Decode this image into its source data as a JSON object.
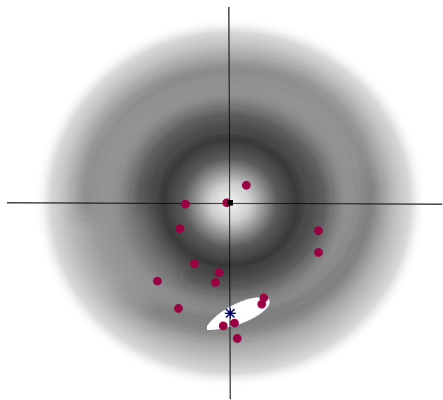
{
  "chart_data": {
    "type": "scatter",
    "x": [
      352,
      265,
      324,
      257,
      455,
      455,
      278,
      313,
      225,
      308,
      377,
      374,
      255,
      335,
      319,
      339
    ],
    "y": [
      265,
      292,
      290,
      327,
      330,
      361,
      377,
      390,
      402,
      404,
      426,
      435,
      441,
      462,
      466,
      484
    ],
    "center_marker": [
      329,
      290
    ],
    "star_marker": [
      329,
      448
    ],
    "colors": {
      "points": "#990044",
      "star": "#000066",
      "axes": "#000000",
      "highlight": "#ffffff"
    }
  }
}
